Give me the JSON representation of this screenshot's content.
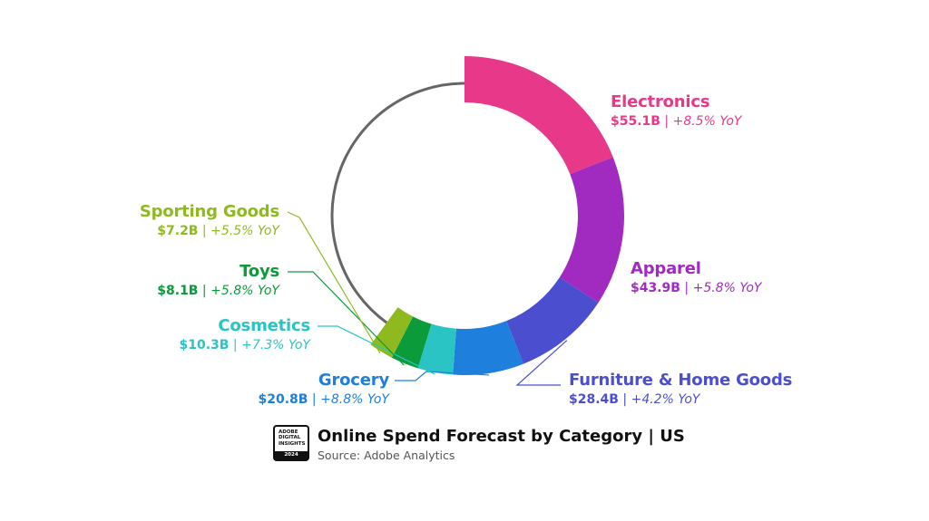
{
  "chart_data": {
    "type": "donut",
    "title": "Online Spend Forecast by Category | US",
    "source": "Source: Adobe Analytics",
    "badge": [
      "ADOBE",
      "DIGITAL",
      "INSIGHTS",
      "2024"
    ],
    "unit": "$B",
    "series": [
      {
        "name": "Electronics",
        "value": 55.1,
        "value_label": "$55.1B",
        "yoy": "+8.5% YoY",
        "color": "#e8388a"
      },
      {
        "name": "Apparel",
        "value": 43.9,
        "value_label": "$43.9B",
        "yoy": "+5.8% YoY",
        "color": "#a12ac0"
      },
      {
        "name": "Furniture & Home Goods",
        "value": 28.4,
        "value_label": "$28.4B",
        "yoy": "+4.2% YoY",
        "color": "#4b4fcf"
      },
      {
        "name": "Grocery",
        "value": 20.8,
        "value_label": "$20.8B",
        "yoy": "+8.8% YoY",
        "color": "#1e80dc"
      },
      {
        "name": "Cosmetics",
        "value": 10.3,
        "value_label": "$10.3B",
        "yoy": "+7.3% YoY",
        "color": "#2bc4c4"
      },
      {
        "name": "Toys",
        "value": 8.1,
        "value_label": "$8.1B",
        "yoy": "+5.8% YoY",
        "color": "#0c9b3a"
      },
      {
        "name": "Sporting Goods",
        "value": 7.2,
        "value_label": "$7.2B",
        "yoy": "+5.5% YoY",
        "color": "#8fba1f"
      }
    ],
    "remainder_ring_color": "#666666"
  }
}
